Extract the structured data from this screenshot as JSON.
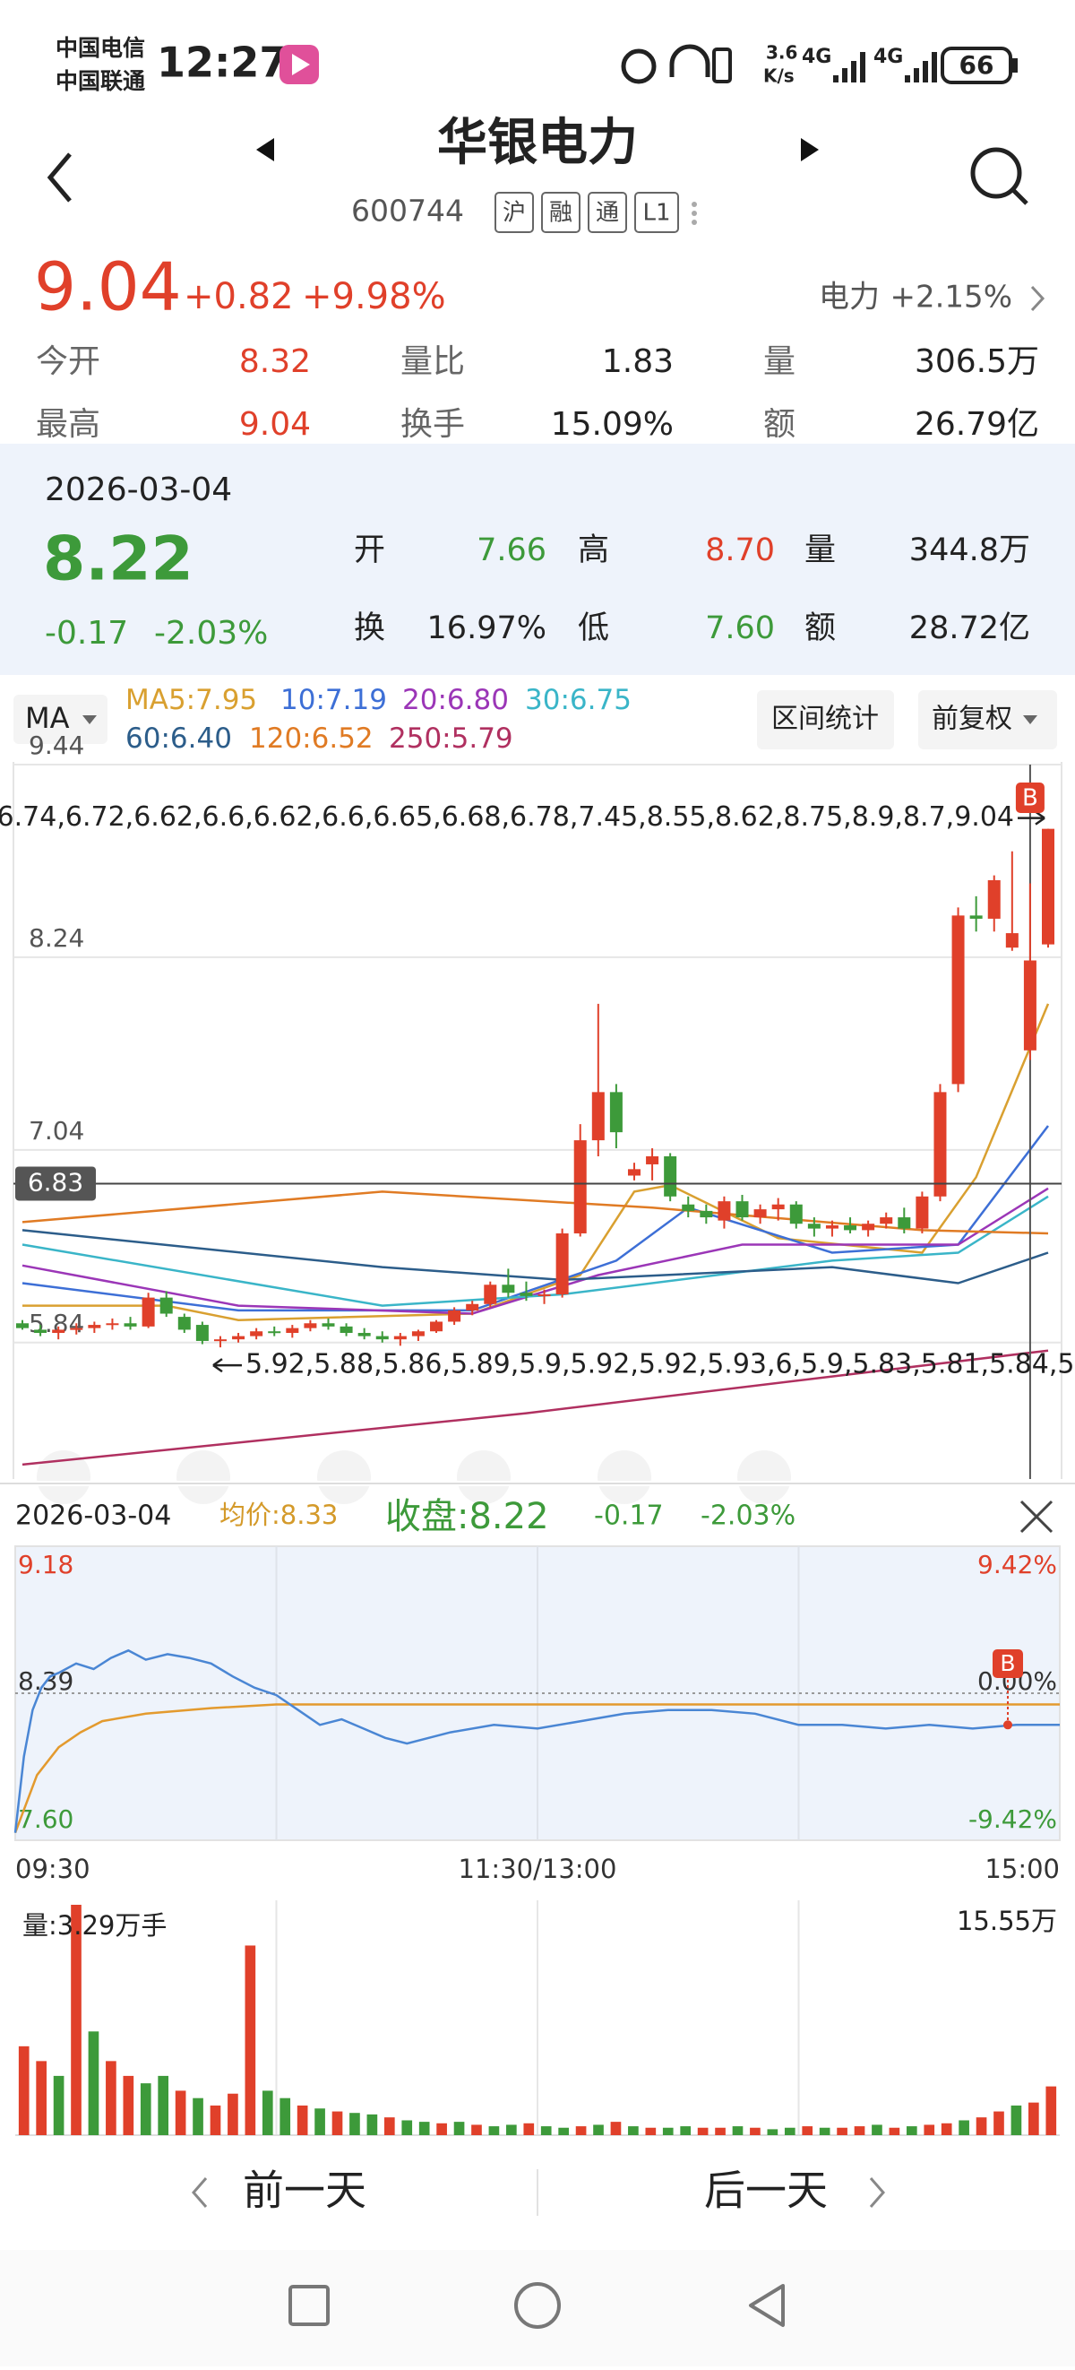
{
  "status_bar": {
    "carrier_1": "中国电信",
    "carrier_2": "中国联通",
    "time": "12:27",
    "speed": "3.6",
    "speed_unit": "K/s",
    "network_1": "4G",
    "network_2": "4G",
    "battery": "66"
  },
  "header": {
    "title": "华银电力",
    "code": "600744",
    "tags": [
      "沪",
      "融",
      "通",
      "L1"
    ]
  },
  "quote": {
    "price": "9.04",
    "change": "+0.82",
    "change_pct": "+9.98%",
    "sector": "电力",
    "sector_change": "+2.15%",
    "stats": [
      [
        "今开",
        "8.32",
        "量比",
        "1.83",
        "量",
        "306.5万"
      ],
      [
        "最高",
        "9.04",
        "换手",
        "15.09%",
        "额",
        "26.79亿"
      ]
    ]
  },
  "day_panel": {
    "date": "2026-03-04",
    "close": "8.22",
    "change": "-0.17",
    "change_pct": "-2.03%",
    "stats": [
      [
        "开",
        "7.66",
        "高",
        "8.70",
        "量",
        "344.8万"
      ],
      [
        "换",
        "16.97%",
        "低",
        "7.60",
        "额",
        "28.72亿"
      ]
    ]
  },
  "toolbar": {
    "indicator": "MA",
    "range_stats": "区间统计",
    "adjust": "前复权"
  },
  "chart_data": [
    {
      "type": "candlestick",
      "up_color": "#e0402a",
      "down_color": "#3d9a3a",
      "ylim": [
        4.99,
        9.44
      ],
      "yticks": [
        5.84,
        7.04,
        8.24,
        9.44
      ],
      "grid": true,
      "crosshair_price": 6.83,
      "low": [
        5.92,
        5.88,
        5.86,
        5.89,
        5.9,
        5.92,
        5.92,
        5.93,
        6.0,
        5.9,
        5.83,
        5.81,
        5.84,
        5.86,
        5.88,
        5.87,
        5.91,
        5.92,
        5.88,
        5.86,
        5.84,
        5.82,
        5.85,
        5.9,
        5.95,
        6.01,
        6.06,
        6.12,
        6.1,
        6.08,
        6.12,
        6.5,
        7.0,
        7.05,
        6.85,
        6.85,
        6.72,
        6.62,
        6.58,
        6.55,
        6.6,
        6.58,
        6.6,
        6.55,
        6.5,
        6.5,
        6.52,
        6.5,
        6.55,
        6.52,
        6.52,
        6.72,
        7.4,
        8.4,
        8.4,
        8.28,
        7.6,
        8.3
      ],
      "high": [
        5.98,
        5.95,
        5.94,
        5.96,
        5.97,
        5.99,
        6.0,
        6.15,
        6.16,
        6.02,
        5.97,
        5.88,
        5.9,
        5.93,
        5.94,
        5.95,
        5.98,
        5.99,
        5.96,
        5.93,
        5.91,
        5.9,
        5.92,
        5.98,
        6.06,
        6.1,
        6.22,
        6.3,
        6.22,
        6.17,
        6.55,
        7.2,
        7.95,
        7.45,
        6.96,
        7.05,
        7.02,
        6.75,
        6.7,
        6.75,
        6.76,
        6.7,
        6.74,
        6.72,
        6.62,
        6.6,
        6.62,
        6.6,
        6.65,
        6.68,
        6.78,
        7.45,
        8.55,
        8.62,
        8.75,
        8.9,
        8.7,
        9.04
      ],
      "marker": "B",
      "open": [
        5.96,
        5.92,
        5.9,
        5.92,
        5.93,
        5.95,
        5.96,
        5.94,
        6.12,
        6.0,
        5.95,
        5.85,
        5.86,
        5.88,
        5.91,
        5.9,
        5.93,
        5.96,
        5.94,
        5.9,
        5.88,
        5.86,
        5.88,
        5.91,
        5.97,
        6.04,
        6.08,
        6.2,
        6.15,
        6.13,
        6.14,
        6.52,
        7.1,
        7.4,
        6.88,
        6.95,
        7.0,
        6.7,
        6.66,
        6.6,
        6.72,
        6.62,
        6.67,
        6.7,
        6.58,
        6.55,
        6.57,
        6.54,
        6.58,
        6.62,
        6.55,
        6.75,
        7.45,
        8.5,
        8.48,
        8.3,
        7.66,
        8.32
      ],
      "close": [
        5.93,
        5.9,
        5.92,
        5.93,
        5.95,
        5.96,
        5.94,
        6.12,
        6.02,
        5.92,
        5.85,
        5.86,
        5.88,
        5.91,
        5.9,
        5.93,
        5.96,
        5.94,
        5.9,
        5.88,
        5.86,
        5.88,
        5.91,
        5.97,
        6.04,
        6.08,
        6.2,
        6.15,
        6.13,
        6.14,
        6.52,
        7.1,
        7.4,
        7.15,
        6.92,
        7.0,
        6.75,
        6.66,
        6.62,
        6.72,
        6.62,
        6.67,
        6.7,
        6.58,
        6.55,
        6.57,
        6.54,
        6.58,
        6.62,
        6.55,
        6.75,
        7.4,
        8.5,
        8.48,
        8.72,
        8.39,
        8.22,
        9.04
      ],
      "ma": [
        {
          "name": "MA5:",
          "last": "7.95",
          "color": "#d9a030",
          "x": [
            0,
            8,
            12,
            25,
            31,
            34,
            36,
            42,
            50,
            53,
            57
          ],
          "values": [
            6.07,
            6.07,
            5.98,
            6.02,
            6.26,
            6.78,
            6.82,
            6.49,
            6.4,
            6.87,
            7.95
          ]
        },
        {
          "name": "10:",
          "last": "7.19",
          "color": "#3d6fd6",
          "x": [
            0,
            12,
            25,
            33,
            37,
            45,
            52,
            57
          ],
          "values": [
            6.21,
            6.04,
            6.04,
            6.35,
            6.68,
            6.4,
            6.45,
            7.19
          ]
        },
        {
          "name": "20:",
          "last": "6.80",
          "color": "#9b36b7",
          "x": [
            0,
            12,
            25,
            32,
            40,
            52,
            57
          ],
          "values": [
            6.32,
            6.07,
            6.02,
            6.26,
            6.45,
            6.45,
            6.8
          ]
        },
        {
          "name": "30:",
          "last": "6.75",
          "color": "#3ab5c8",
          "x": [
            0,
            20,
            30,
            45,
            52,
            57
          ],
          "values": [
            6.45,
            6.07,
            6.14,
            6.35,
            6.4,
            6.75
          ]
        },
        {
          "name": "60:",
          "last": "6.40",
          "color": "#2c5d8a",
          "x": [
            0,
            20,
            30,
            45,
            52,
            57
          ],
          "values": [
            6.54,
            6.31,
            6.23,
            6.31,
            6.21,
            6.4
          ]
        },
        {
          "name": "120:",
          "last": "6.52",
          "color": "#e07b24",
          "x": [
            0,
            20,
            35,
            50,
            57
          ],
          "values": [
            6.59,
            6.78,
            6.68,
            6.54,
            6.52
          ]
        },
        {
          "name": "250:",
          "last": "5.79",
          "color": "#b03060",
          "x": [
            0,
            28,
            57
          ],
          "values": [
            5.08,
            5.4,
            5.79
          ]
        }
      ]
    },
    {
      "type": "line",
      "date": "2026-03-04",
      "avg_label": "均价:",
      "avg": 8.33,
      "close_label": "收盘:",
      "close": 8.22,
      "change": -0.17,
      "change_pct": "-2.03%",
      "marker": "B",
      "xlim": [
        0,
        240
      ],
      "xticks": [
        {
          "value": 0,
          "label": "09:30"
        },
        {
          "value": 120,
          "label": "11:30/13:00"
        },
        {
          "value": 240,
          "label": "15:00"
        }
      ],
      "xgrid": [
        60,
        120,
        180
      ],
      "ylim": [
        7.6,
        9.18
      ],
      "yticks": [
        {
          "value": 7.6,
          "label": "7.60"
        },
        8.39,
        9.18
      ],
      "y2lim": [
        -9.42,
        9.42
      ],
      "y2ticks": [
        {
          "value": -9.42,
          "label": "-9.42%"
        },
        {
          "value": 0,
          "label": "0.00%"
        },
        {
          "value": 9.42,
          "label": "9.42%"
        }
      ],
      "series": [
        {
          "color": "#4a86d4",
          "x": [
            0,
            2,
            4,
            6,
            8,
            10,
            14,
            18,
            22,
            26,
            30,
            35,
            40,
            45,
            50,
            55,
            60,
            65,
            70,
            75,
            80,
            85,
            90,
            100,
            110,
            120,
            130,
            140,
            150,
            160,
            170,
            180,
            190,
            200,
            210,
            220,
            230,
            240
          ],
          "values": [
            7.64,
            8.05,
            8.3,
            8.42,
            8.48,
            8.5,
            8.55,
            8.52,
            8.58,
            8.62,
            8.57,
            8.6,
            8.58,
            8.55,
            8.48,
            8.42,
            8.38,
            8.3,
            8.22,
            8.25,
            8.2,
            8.15,
            8.12,
            8.18,
            8.22,
            8.2,
            8.24,
            8.28,
            8.3,
            8.3,
            8.28,
            8.22,
            8.22,
            8.2,
            8.22,
            8.2,
            8.22,
            8.22
          ]
        },
        {
          "color": "#e39a2e",
          "x": [
            0,
            5,
            10,
            15,
            20,
            30,
            45,
            60,
            90,
            120,
            180,
            240
          ],
          "values": [
            7.64,
            7.95,
            8.1,
            8.18,
            8.24,
            8.28,
            8.31,
            8.33,
            8.33,
            8.33,
            8.33,
            8.33
          ]
        }
      ]
    },
    {
      "type": "bar",
      "label": "量:",
      "current": 3.29,
      "unit": "万手",
      "ylim": [
        0,
        15.55
      ],
      "yticks": [
        {
          "value": 15.55,
          "label": "15.55万"
        }
      ],
      "xgrid": [
        0.25,
        0.5,
        0.75
      ],
      "values": [
        6,
        5,
        4,
        15.55,
        7,
        5,
        4,
        3.5,
        4,
        3,
        2.5,
        2,
        2.8,
        12.8,
        3,
        2.5,
        2,
        1.8,
        1.6,
        1.5,
        1.4,
        1.2,
        1.0,
        0.9,
        0.8,
        0.9,
        0.7,
        0.6,
        0.7,
        0.8,
        0.6,
        0.5,
        0.6,
        0.7,
        0.9,
        0.6,
        0.5,
        0.5,
        0.6,
        0.5,
        0.5,
        0.6,
        0.5,
        0.4,
        0.5,
        0.6,
        0.5,
        0.5,
        0.6,
        0.7,
        0.5,
        0.6,
        0.7,
        0.8,
        1.0,
        1.2,
        1.6,
        2.0,
        2.2,
        3.29
      ],
      "bar_colors": [
        "#e0402a",
        "#e0402a",
        "#3d9a3a",
        "#e0402a",
        "#3d9a3a",
        "#e0402a",
        "#e0402a",
        "#3d9a3a",
        "#3d9a3a",
        "#e0402a",
        "#3d9a3a",
        "#e0402a",
        "#e0402a",
        "#e0402a",
        "#3d9a3a",
        "#3d9a3a",
        "#e0402a",
        "#3d9a3a",
        "#e0402a",
        "#3d9a3a",
        "#3d9a3a",
        "#e0402a",
        "#3d9a3a",
        "#3d9a3a",
        "#e0402a",
        "#3d9a3a",
        "#e0402a",
        "#3d9a3a",
        "#3d9a3a",
        "#e0402a",
        "#3d9a3a",
        "#3d9a3a",
        "#e0402a",
        "#3d9a3a",
        "#e0402a",
        "#3d9a3a",
        "#e0402a",
        "#3d9a3a",
        "#3d9a3a",
        "#e0402a",
        "#e0402a",
        "#3d9a3a",
        "#e0402a",
        "#3d9a3a",
        "#3d9a3a",
        "#e0402a",
        "#3d9a3a",
        "#e0402a",
        "#e0402a",
        "#3d9a3a",
        "#e0402a",
        "#3d9a3a",
        "#e0402a",
        "#e0402a",
        "#3d9a3a",
        "#e0402a",
        "#e0402a",
        "#3d9a3a",
        "#e0402a",
        "#e0402a"
      ]
    }
  ],
  "footer": {
    "prev_day": "前一天",
    "next_day": "后一天"
  }
}
